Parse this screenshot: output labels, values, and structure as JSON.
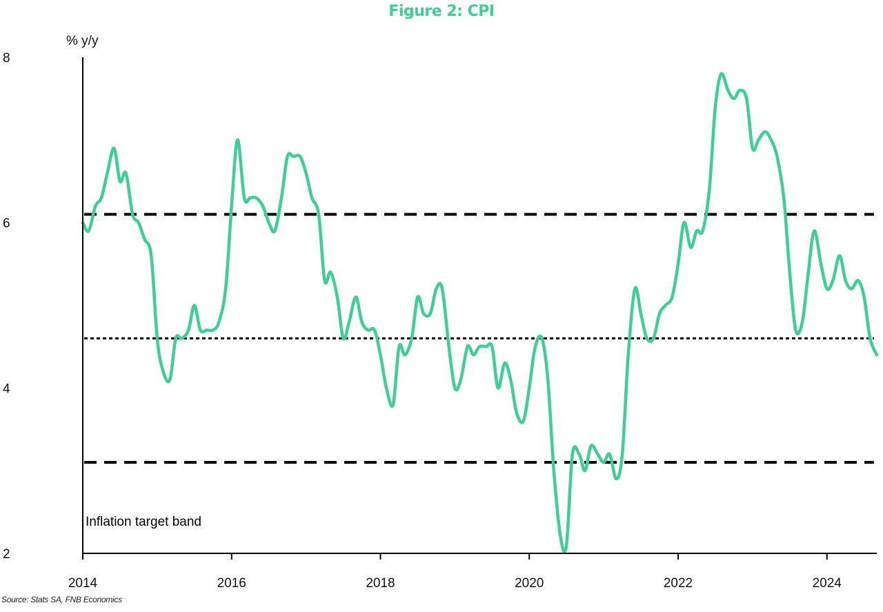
{
  "chart_data": {
    "type": "line",
    "title": "Figure 2: CPI",
    "ylabel": "% y/y",
    "xlabel": "",
    "ylim": [
      2,
      8
    ],
    "xlim": [
      2014.0,
      2024.67
    ],
    "yticks": [
      "2",
      "4",
      "6",
      "8"
    ],
    "xticks": [
      "2014",
      "2016",
      "2018",
      "2020",
      "2022",
      "2024"
    ],
    "grid": false,
    "line_color": "#3ecf96",
    "title_color": "#3ecf96",
    "annotation": "Inflation target band",
    "source": "Source: Stats SA, FNB Economics",
    "reference_lines": [
      {
        "value": 6.1,
        "style": "dashed"
      },
      {
        "value": 4.6,
        "style": "dotted"
      },
      {
        "value": 3.1,
        "style": "dashed"
      }
    ],
    "series": [
      {
        "x": [
          2014.0,
          2014.08,
          2014.17,
          2014.25,
          2014.33,
          2014.42,
          2014.5,
          2014.58,
          2014.67,
          2014.75,
          2014.83,
          2014.92,
          2015.0,
          2015.08,
          2015.17,
          2015.25,
          2015.33,
          2015.42,
          2015.5,
          2015.58,
          2015.67,
          2015.75,
          2015.83,
          2015.92,
          2016.0,
          2016.08,
          2016.17,
          2016.25,
          2016.33,
          2016.42,
          2016.5,
          2016.58,
          2016.67,
          2016.75,
          2016.83,
          2016.92,
          2017.0,
          2017.08,
          2017.17,
          2017.25,
          2017.33,
          2017.42,
          2017.5,
          2017.58,
          2017.67,
          2017.75,
          2017.83,
          2017.92,
          2018.0,
          2018.08,
          2018.17,
          2018.25,
          2018.33,
          2018.42,
          2018.5,
          2018.58,
          2018.67,
          2018.75,
          2018.83,
          2018.92,
          2019.0,
          2019.08,
          2019.17,
          2019.25,
          2019.33,
          2019.42,
          2019.5,
          2019.58,
          2019.67,
          2019.75,
          2019.83,
          2019.92,
          2020.0,
          2020.08,
          2020.17,
          2020.25,
          2020.33,
          2020.42,
          2020.5,
          2020.58,
          2020.67,
          2020.75,
          2020.83,
          2020.92,
          2021.0,
          2021.08,
          2021.17,
          2021.25,
          2021.33,
          2021.42,
          2021.5,
          2021.58,
          2021.67,
          2021.75,
          2021.83,
          2021.92,
          2022.0,
          2022.08,
          2022.17,
          2022.25,
          2022.33,
          2022.42,
          2022.5,
          2022.58,
          2022.67,
          2022.75,
          2022.83,
          2022.92,
          2023.0,
          2023.08,
          2023.17,
          2023.25,
          2023.33,
          2023.42,
          2023.5,
          2023.58,
          2023.67,
          2023.75,
          2023.83,
          2023.92,
          2024.0,
          2024.08,
          2024.17,
          2024.25,
          2024.33,
          2024.42,
          2024.5,
          2024.58,
          2024.67
        ],
        "values": [
          6.0,
          5.9,
          6.2,
          6.3,
          6.6,
          6.9,
          6.5,
          6.6,
          6.1,
          6.0,
          5.8,
          5.6,
          4.6,
          4.2,
          4.1,
          4.6,
          4.6,
          4.7,
          5.0,
          4.7,
          4.7,
          4.7,
          4.8,
          5.2,
          6.2,
          7.0,
          6.3,
          6.3,
          6.3,
          6.2,
          6.0,
          5.9,
          6.3,
          6.8,
          6.8,
          6.8,
          6.6,
          6.3,
          6.1,
          5.3,
          5.4,
          5.1,
          4.6,
          4.8,
          5.1,
          4.8,
          4.7,
          4.7,
          4.4,
          4.0,
          3.8,
          4.5,
          4.4,
          4.6,
          5.1,
          4.9,
          4.9,
          5.2,
          5.2,
          4.5,
          4.0,
          4.1,
          4.5,
          4.4,
          4.5,
          4.5,
          4.5,
          4.0,
          4.3,
          4.1,
          3.7,
          3.6,
          4.0,
          4.5,
          4.6,
          4.1,
          3.0,
          2.2,
          2.1,
          3.2,
          3.2,
          3.0,
          3.3,
          3.2,
          3.1,
          3.2,
          2.9,
          3.2,
          4.4,
          5.2,
          4.9,
          4.6,
          4.6,
          4.9,
          5.0,
          5.1,
          5.5,
          6.0,
          5.7,
          5.9,
          5.9,
          6.4,
          7.4,
          7.8,
          7.6,
          7.5,
          7.6,
          7.5,
          6.9,
          7.0,
          7.1,
          7.0,
          6.8,
          6.3,
          5.4,
          4.7,
          4.8,
          5.4,
          5.9,
          5.5,
          5.2,
          5.3,
          5.6,
          5.3,
          5.2,
          5.3,
          5.1,
          4.6,
          4.4
        ]
      }
    ]
  }
}
